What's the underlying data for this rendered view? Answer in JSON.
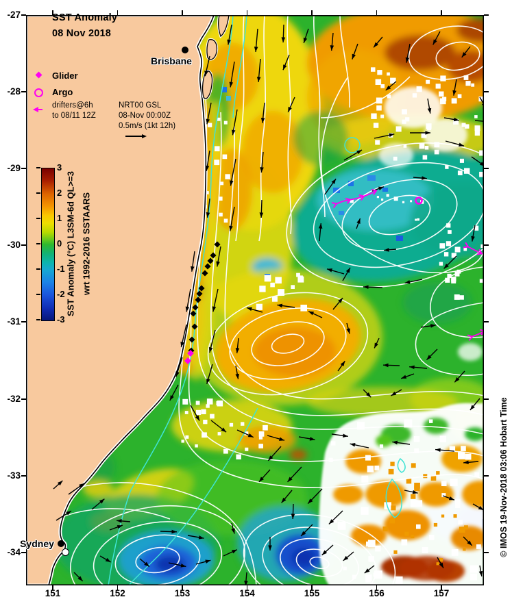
{
  "figure": {
    "title_line1": "SST Anomaly",
    "title_line2": "08 Nov 2018"
  },
  "legend": {
    "glider": "Glider",
    "argo": "Argo",
    "drifters_line1": "drifters@6h",
    "drifters_line2": "to 08/11 12Z"
  },
  "velocity_key": {
    "line1": "NRT00 GSL",
    "line2": "08-Nov 00:00Z",
    "line3": "0.5m/s (1kt 12h)"
  },
  "colorbar": {
    "tick_labels": [
      "3",
      "2",
      "1",
      "0",
      "-1",
      "-2",
      "-3"
    ],
    "label_line1": "SST Anomaly (°C) L3SM-6d QL>=3",
    "label_line2": "wrt 1992-2016 SSTAARS"
  },
  "axes": {
    "x_tick_labels": [
      "151",
      "152",
      "153",
      "154",
      "155",
      "156",
      "157"
    ],
    "y_tick_labels": [
      "-27",
      "-28",
      "-29",
      "-30",
      "-31",
      "-32",
      "-33",
      "-34"
    ]
  },
  "cities": {
    "brisbane": "Brisbane",
    "sydney": "Sydney"
  },
  "attribution": "© IMOS 19-Nov-2018 03:06 Hobart Time",
  "colors": {
    "land": "#f8c99e",
    "ocean_base": "#2cb22c",
    "contour": "#ffffff",
    "isobath_contour": "#3fe3d5",
    "marker_magenta": "#ff00f0",
    "arrow": "#000000"
  }
}
